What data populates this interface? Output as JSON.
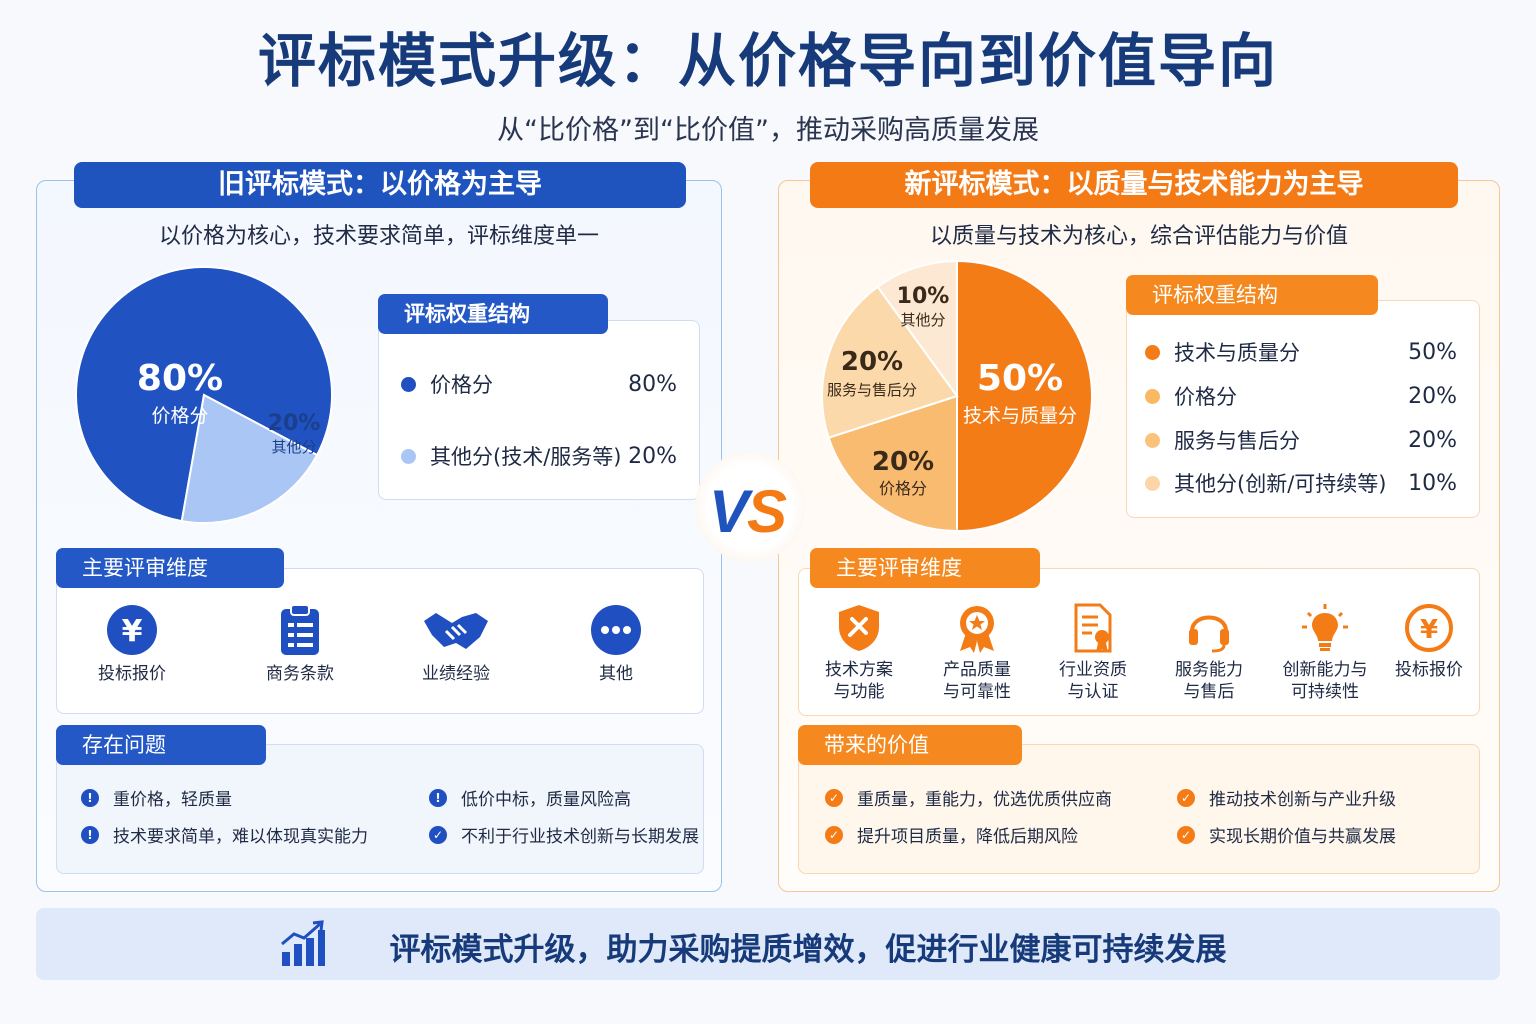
{
  "title": "评标模式升级：从价格导向到价值导向",
  "subtitle": "从“比价格”到“比价值”，推动采购高质量发展",
  "vs_label": "VS",
  "old_mode": {
    "header": "旧评标模式：以价格为主导",
    "description": "以价格为核心，技术要求简单，评标维度单一",
    "pie": {
      "type": "pie",
      "slices": [
        {
          "label": "价格分",
          "value": 80,
          "display": "80%",
          "color": "#2152c2"
        },
        {
          "label": "其他分",
          "value": 20,
          "display": "20%",
          "color": "#a9c6f4"
        }
      ]
    },
    "weights_title": "评标权重结构",
    "weights": [
      {
        "label": "价格分",
        "value": "80%",
        "color": "#1f4fc0"
      },
      {
        "label": "其他分(技术/服务等)",
        "value": "20%",
        "color": "#a9c6f4"
      }
    ],
    "dimensions_title": "主要评审维度",
    "dimensions": [
      {
        "label": "投标报价",
        "icon": "yen-coin-icon"
      },
      {
        "label": "商务条款",
        "icon": "clipboard-icon"
      },
      {
        "label": "业绩经验",
        "icon": "handshake-icon"
      },
      {
        "label": "其他",
        "icon": "more-dots-icon"
      }
    ],
    "issues_title": "存在问题",
    "issues": [
      {
        "text": "重价格，轻质量",
        "icon": "exclamation-icon"
      },
      {
        "text": "低价中标，质量风险高",
        "icon": "exclamation-icon"
      },
      {
        "text": "技术要求简单，难以体现真实能力",
        "icon": "exclamation-icon"
      },
      {
        "text": "不利于行业技术创新与长期发展",
        "icon": "check-icon"
      }
    ]
  },
  "new_mode": {
    "header": "新评标模式：以质量与技术能力为主导",
    "description": "以质量与技术为核心，综合评估能力与价值",
    "pie": {
      "type": "pie",
      "slices": [
        {
          "label": "技术与质量分",
          "value": 50,
          "display": "50%",
          "color": "#f47c16"
        },
        {
          "label": "价格分",
          "value": 20,
          "display": "20%",
          "color": "#f9bb70"
        },
        {
          "label": "服务与售后分",
          "value": 20,
          "display": "20%",
          "color": "#fcd9ab"
        },
        {
          "label": "其他分",
          "value": 10,
          "display": "10%",
          "color": "#fde8d3"
        }
      ]
    },
    "weights_title": "评标权重结构",
    "weights": [
      {
        "label": "技术与质量分",
        "value": "50%",
        "color": "#f47c16"
      },
      {
        "label": "价格分",
        "value": "20%",
        "color": "#f9b861"
      },
      {
        "label": "服务与售后分",
        "value": "20%",
        "color": "#fbc27c"
      },
      {
        "label": "其他分(创新/可持续等)",
        "value": "10%",
        "color": "#fcd6a8"
      }
    ],
    "dimensions_title": "主要评审维度",
    "dimensions": [
      {
        "line1": "技术方案",
        "line2": "与功能",
        "icon": "shield-tools-icon"
      },
      {
        "line1": "产品质量",
        "line2": "与可靠性",
        "icon": "award-badge-icon"
      },
      {
        "line1": "行业资质",
        "line2": "与认证",
        "icon": "certificate-icon"
      },
      {
        "line1": "服务能力",
        "line2": "与售后",
        "icon": "headset-icon"
      },
      {
        "line1": "创新能力与",
        "line2": "可持续性",
        "icon": "lightbulb-icon"
      },
      {
        "line1": "投标报价",
        "line2": "",
        "icon": "yen-coin-icon"
      }
    ],
    "values_title": "带来的价值",
    "values": [
      "重质量，重能力，优选优质供应商",
      "推动技术创新与产业升级",
      "提升项目质量，降低后期风险",
      "实现长期价值与共赢发展"
    ]
  },
  "footer": {
    "text": "评标模式升级，助力采购提质增效，促进行业健康可持续发展",
    "icon": "bar-chart-growth-icon"
  }
}
